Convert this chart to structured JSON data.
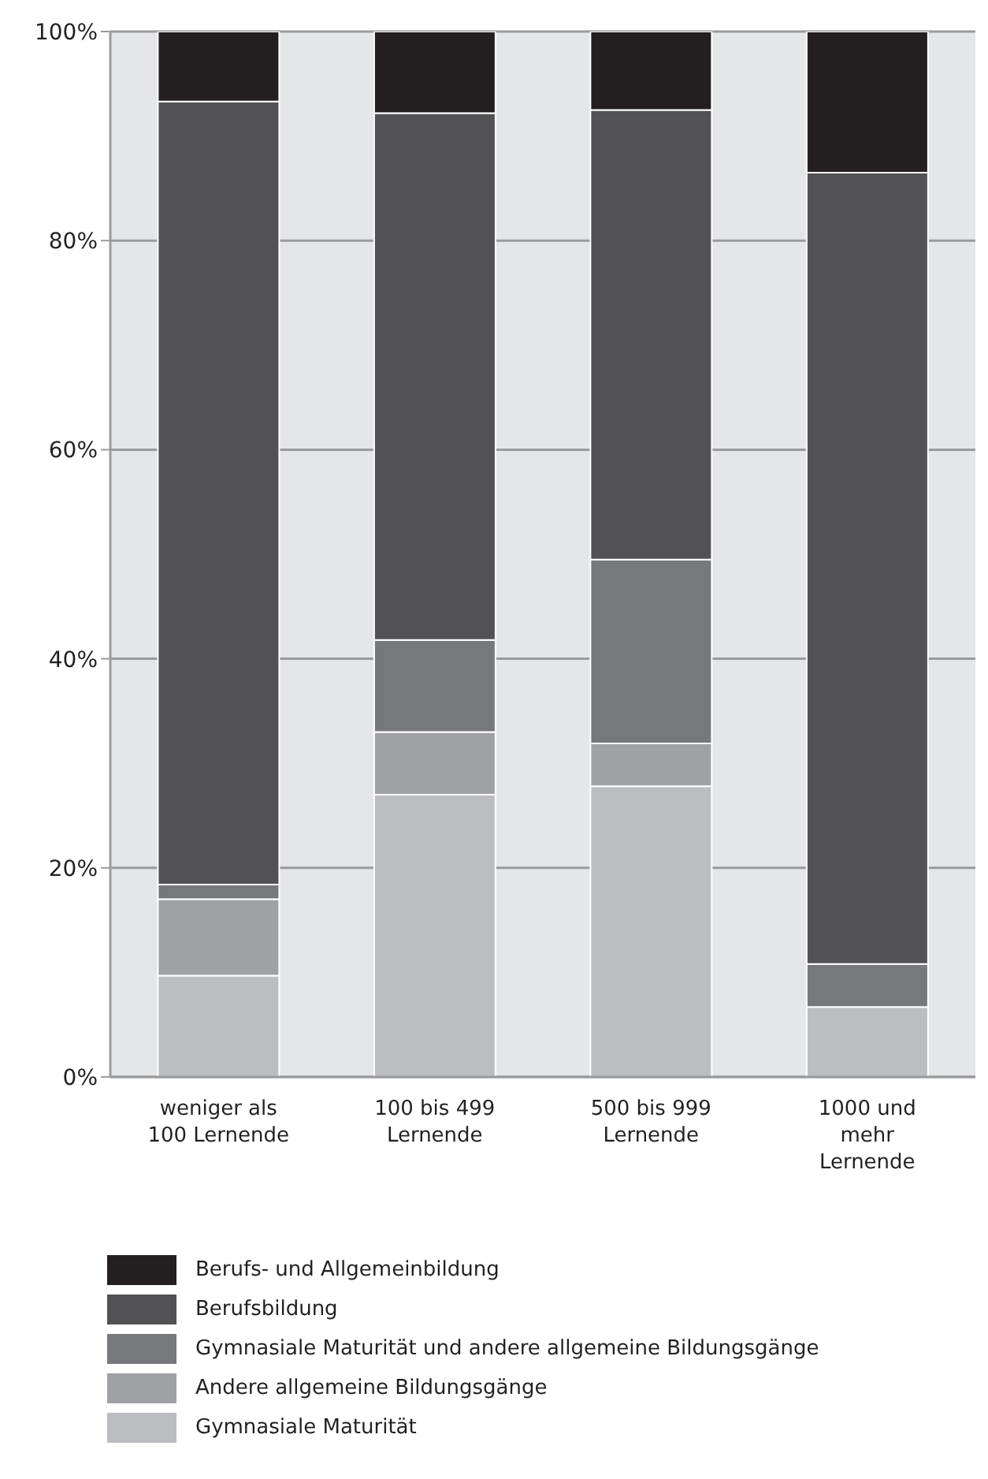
{
  "chart_data": {
    "type": "bar",
    "stacked": true,
    "categories": [
      "weniger als\n100 Lernende",
      "100 bis 499\nLernende",
      "500 bis 999\nLernende",
      "1000 und\nmehr\nLernende"
    ],
    "series": [
      {
        "name": "Gymnasiale Maturität",
        "color": "#bcbdc0",
        "values": [
          9.7,
          27,
          27.8,
          6.7
        ]
      },
      {
        "name": "Andere allgemeine Bildungsgänge",
        "color": "#a0a1a4",
        "values": [
          7.3,
          6,
          4.1,
          0
        ]
      },
      {
        "name": "Gymnasiale Maturität und andere allgemeine Bildungsgänge",
        "color": "#77787b",
        "values": [
          1.4,
          8.8,
          17.6,
          4.1
        ]
      },
      {
        "name": "Berufsbildung",
        "color": "#525254",
        "values": [
          74.9,
          50.4,
          43,
          75.7
        ]
      },
      {
        "name": "Berufs- und Allgemeinbildung",
        "color": "#231f20",
        "values": [
          6.7,
          7.8,
          7.5,
          13.5
        ]
      }
    ],
    "ylim": [
      0,
      100
    ],
    "yticks": [
      {
        "value": 0,
        "label": "0%"
      },
      {
        "value": 20,
        "label": "20%"
      },
      {
        "value": 40,
        "label": "40%"
      },
      {
        "value": 60,
        "label": "60%"
      },
      {
        "value": 80,
        "label": "80%"
      },
      {
        "value": 100,
        "label": "100%"
      }
    ],
    "grid": "y",
    "legend": "bottom"
  }
}
